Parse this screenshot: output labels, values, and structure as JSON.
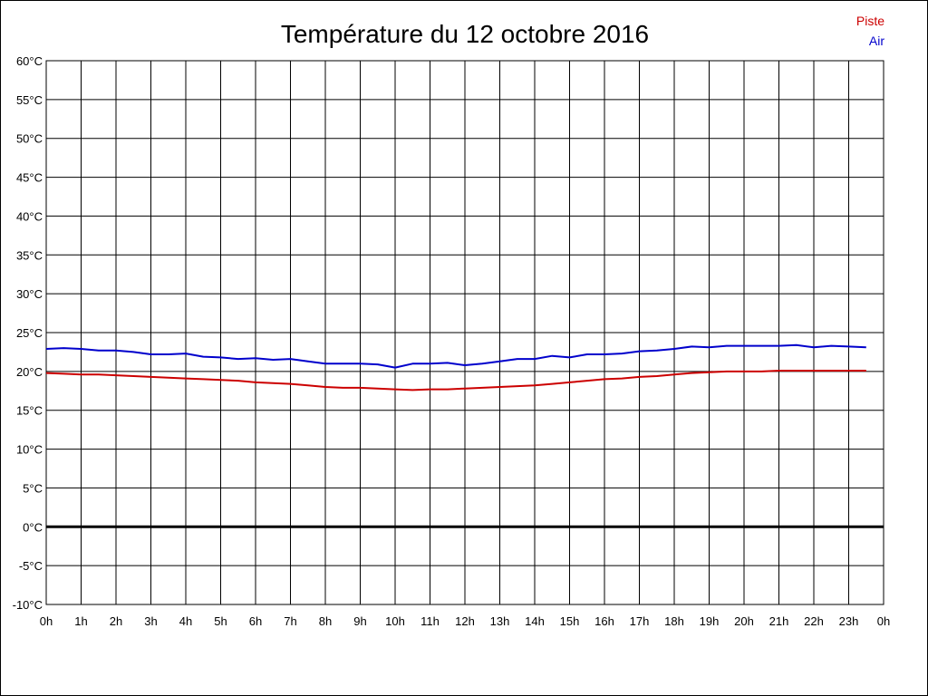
{
  "chart_data": {
    "type": "line",
    "title": "Température du 12 octobre 2016",
    "xlabel": "",
    "ylabel": "",
    "x_tick_labels": [
      "0h",
      "1h",
      "2h",
      "3h",
      "4h",
      "5h",
      "6h",
      "7h",
      "8h",
      "9h",
      "10h",
      "11h",
      "12h",
      "13h",
      "14h",
      "15h",
      "16h",
      "17h",
      "18h",
      "19h",
      "20h",
      "21h",
      "22h",
      "23h",
      "0h"
    ],
    "y_tick_labels": [
      "60°C",
      "55°C",
      "50°C",
      "45°C",
      "40°C",
      "35°C",
      "30°C",
      "25°C",
      "20°C",
      "15°C",
      "10°C",
      "5°C",
      "0°C",
      "-5°C",
      "-10°C"
    ],
    "xlim": [
      0,
      24
    ],
    "ylim": [
      -10,
      60
    ],
    "grid": true,
    "legend_position": "top-right",
    "series": [
      {
        "name": "Piste",
        "color": "#cc0000",
        "x": [
          0,
          0.5,
          1,
          1.5,
          2,
          2.5,
          3,
          3.5,
          4,
          4.5,
          5,
          5.5,
          6,
          6.5,
          7,
          7.5,
          8,
          8.5,
          9,
          9.5,
          10,
          10.5,
          11,
          11.5,
          12,
          12.5,
          13,
          13.5,
          14,
          14.5,
          15,
          15.5,
          16,
          16.5,
          17,
          17.5,
          18,
          18.5,
          19,
          19.5,
          20,
          20.5,
          21,
          21.5,
          22,
          22.5,
          23,
          23.5
        ],
        "values": [
          19.8,
          19.7,
          19.6,
          19.6,
          19.5,
          19.4,
          19.3,
          19.2,
          19.1,
          19.0,
          18.9,
          18.8,
          18.6,
          18.5,
          18.4,
          18.2,
          18.0,
          17.9,
          17.9,
          17.8,
          17.7,
          17.6,
          17.7,
          17.7,
          17.8,
          17.9,
          18.0,
          18.1,
          18.2,
          18.4,
          18.6,
          18.8,
          19.0,
          19.1,
          19.3,
          19.4,
          19.6,
          19.8,
          19.9,
          20.0,
          20.0,
          20.0,
          20.1,
          20.1,
          20.1,
          20.1,
          20.1,
          20.1
        ]
      },
      {
        "name": "Air",
        "color": "#0000cc",
        "x": [
          0,
          0.5,
          1,
          1.5,
          2,
          2.5,
          3,
          3.5,
          4,
          4.5,
          5,
          5.5,
          6,
          6.5,
          7,
          7.5,
          8,
          8.5,
          9,
          9.5,
          10,
          10.5,
          11,
          11.5,
          12,
          12.5,
          13,
          13.5,
          14,
          14.5,
          15,
          15.5,
          16,
          16.5,
          17,
          17.5,
          18,
          18.5,
          19,
          19.5,
          20,
          20.5,
          21,
          21.5,
          22,
          22.5,
          23,
          23.5
        ],
        "values": [
          22.9,
          23.0,
          22.9,
          22.7,
          22.7,
          22.5,
          22.2,
          22.2,
          22.3,
          21.9,
          21.8,
          21.6,
          21.7,
          21.5,
          21.6,
          21.3,
          21.0,
          21.0,
          21.0,
          20.9,
          20.5,
          21.0,
          21.0,
          21.1,
          20.8,
          21.0,
          21.3,
          21.6,
          21.6,
          22.0,
          21.8,
          22.2,
          22.2,
          22.3,
          22.6,
          22.7,
          22.9,
          23.2,
          23.1,
          23.3,
          23.3,
          23.3,
          23.3,
          23.4,
          23.1,
          23.3,
          23.2,
          23.1
        ]
      }
    ]
  }
}
